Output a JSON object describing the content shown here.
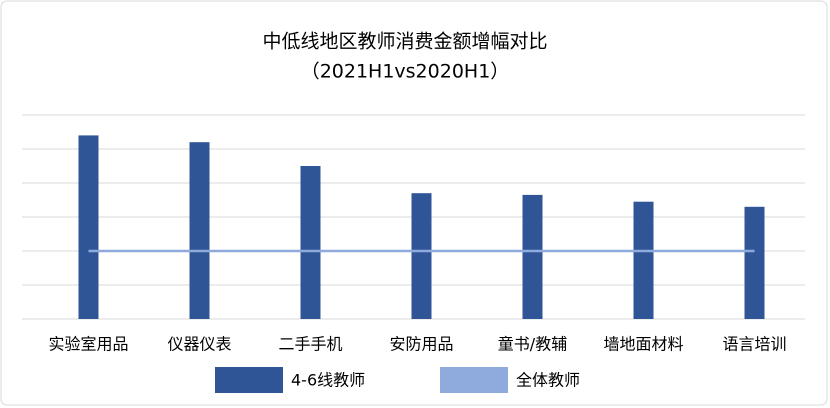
{
  "chart_data": {
    "type": "bar_line",
    "title": "中低线地区教师消费金额增幅对比",
    "subtitle": "（2021H1vs2020H1）",
    "categories": [
      "实验室用品",
      "仪器仪表",
      "二手手机",
      "安防用品",
      "童书/教辅",
      "墙地面材料",
      "语言培训"
    ],
    "series": [
      {
        "name": "4-6线教师",
        "type": "bar",
        "color": "#2f5597",
        "values": [
          5.4,
          5.2,
          4.5,
          3.7,
          3.65,
          3.45,
          3.3
        ]
      },
      {
        "name": "全体教师",
        "type": "line",
        "color": "#8faadc",
        "values": [
          2,
          2,
          2,
          2,
          2,
          2,
          2
        ]
      }
    ],
    "ylim": [
      0,
      6
    ],
    "yticks": [
      0,
      1,
      2,
      3,
      4,
      5,
      6
    ],
    "grid": true,
    "legend": "bottom"
  }
}
